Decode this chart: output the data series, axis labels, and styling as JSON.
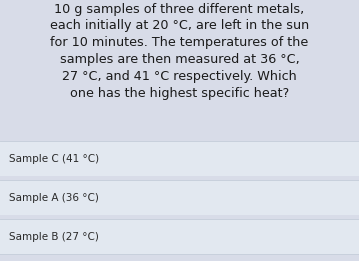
{
  "question_text": "10 g samples of three different metals,\neach initially at 20 °C, are left in the sun\nfor 10 minutes. The temperatures of the\nsamples are then measured at 36 °C,\n27 °C, and 41 °C respectively. Which\none has the highest specific heat?",
  "options": [
    "Sample C (41 °C)",
    "Sample A (36 °C)",
    "Sample B (27 °C)"
  ],
  "bg_color": "#d8dce8",
  "option_bg_color": "#e2e8f0",
  "option_border_color": "#c8d0dc",
  "question_fontsize": 9.2,
  "option_fontsize": 7.5,
  "text_color": "#1a1a1a",
  "option_text_color": "#2a2a2a"
}
